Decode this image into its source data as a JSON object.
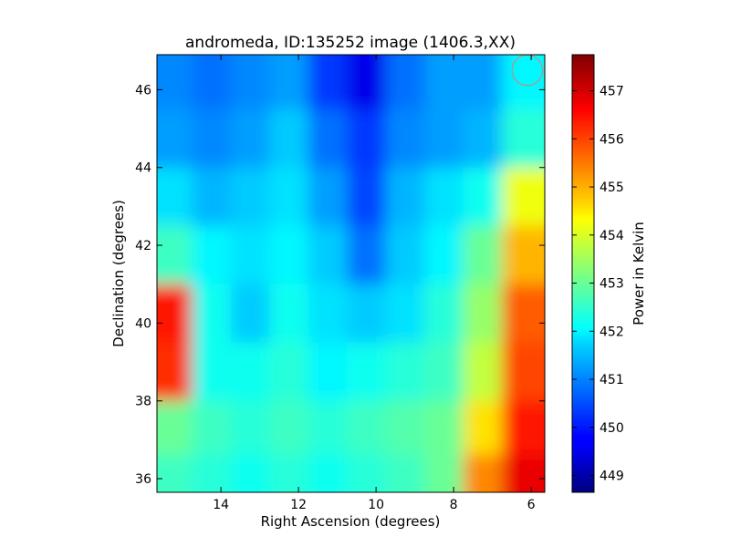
{
  "chart_data": {
    "type": "heatmap",
    "title": "andromeda, ID:135252 image (1406.3,XX)",
    "xlabel": "Right Ascension (degrees)",
    "ylabel": "Declination (degrees)",
    "xlim": [
      15.65,
      5.65
    ],
    "ylim": [
      35.65,
      46.9
    ],
    "x_ticks": [
      14,
      12,
      10,
      8,
      6
    ],
    "x_tick_labels": [
      "14",
      "12",
      "10",
      "8",
      "6"
    ],
    "y_ticks": [
      36,
      38,
      40,
      42,
      44,
      46
    ],
    "y_tick_labels": [
      "36",
      "38",
      "40",
      "42",
      "44",
      "46"
    ],
    "colorbar": {
      "label": "Power in Kelvin",
      "range": [
        448.65,
        457.75
      ],
      "ticks": [
        449,
        450,
        451,
        452,
        453,
        454,
        455,
        456,
        457
      ],
      "tick_labels": [
        "449",
        "450",
        "451",
        "452",
        "453",
        "454",
        "455",
        "456",
        "457"
      ],
      "colormap": "jet"
    },
    "ra_centers": [
      15.25,
      14.25,
      13.25,
      12.25,
      11.25,
      10.25,
      9.25,
      8.25,
      7.25,
      6.25
    ],
    "dec_centers": [
      46.25,
      44.75,
      43.25,
      41.75,
      40.25,
      38.75,
      37.25,
      36.0
    ],
    "values": [
      [
        451.0,
        450.8,
        451.0,
        451.2,
        450.3,
        449.6,
        450.8,
        451.2,
        451.2,
        452.0
      ],
      [
        451.2,
        451.0,
        451.2,
        451.6,
        450.8,
        450.3,
        451.0,
        451.2,
        451.4,
        452.4
      ],
      [
        451.8,
        451.4,
        451.6,
        451.8,
        451.2,
        450.4,
        451.4,
        451.8,
        452.2,
        454.2
      ],
      [
        452.6,
        452.0,
        451.8,
        452.0,
        451.6,
        450.8,
        451.6,
        452.0,
        453.0,
        455.0
      ],
      [
        456.4,
        452.2,
        451.6,
        452.2,
        451.8,
        451.6,
        451.8,
        452.4,
        453.4,
        455.8
      ],
      [
        456.2,
        452.2,
        452.2,
        452.4,
        452.0,
        452.2,
        452.4,
        452.6,
        453.8,
        456.0
      ],
      [
        453.0,
        452.6,
        452.4,
        452.6,
        452.4,
        452.6,
        452.8,
        453.0,
        454.6,
        456.4
      ],
      [
        452.6,
        452.4,
        452.2,
        452.4,
        452.2,
        452.4,
        452.6,
        453.0,
        455.4,
        456.8
      ]
    ],
    "marker": {
      "shape": "circle",
      "ra": 6.1,
      "dec": 46.5,
      "radius_deg": 0.3,
      "color": "#e08060"
    }
  }
}
